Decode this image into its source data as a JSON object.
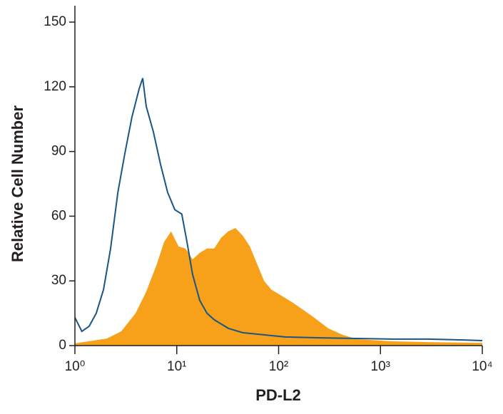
{
  "chart_data": {
    "type": "histogram-overlay",
    "x_label": "PD-L2",
    "y_label": "Relative Cell Number",
    "xlog": true,
    "xlim": [
      1,
      10000
    ],
    "xticks": [
      {
        "value": 1,
        "label": "10⁰"
      },
      {
        "value": 10,
        "label": "10¹"
      },
      {
        "value": 100,
        "label": "10²"
      },
      {
        "value": 1000,
        "label": "10³"
      },
      {
        "value": 10000,
        "label": "10⁴"
      }
    ],
    "ylim": [
      0,
      150
    ],
    "yticks": [
      0,
      30,
      60,
      90,
      120,
      150
    ],
    "series": [
      {
        "style": "filled",
        "color": "#f7a11a",
        "x": [
          1,
          2.07,
          2.85,
          3.94,
          5.01,
          6.4,
          7.5,
          8.8,
          10.4,
          12.2,
          14.3,
          16.8,
          19.8,
          23.3,
          27.3,
          32.1,
          37.7,
          44.4,
          52.2,
          61.3,
          72,
          84.6,
          108,
          137,
          175,
          223,
          307,
          424,
          585,
          1310,
          2940,
          10000
        ],
        "values": [
          1,
          3.3,
          6.6,
          15,
          25,
          38,
          48,
          53,
          46,
          45,
          40,
          43,
          45,
          45,
          50,
          53,
          54.5,
          51,
          46,
          38,
          30,
          26,
          23,
          20,
          16.5,
          13,
          8,
          5,
          3,
          2,
          1.6,
          1.3
        ]
      },
      {
        "style": "outline",
        "color": "#1a5585",
        "x": [
          1,
          1.17,
          1.38,
          1.62,
          1.91,
          2.24,
          2.64,
          3.09,
          3.63,
          4.27,
          4.63,
          5.01,
          5.9,
          6.93,
          8.14,
          9.57,
          11.2,
          12.6,
          14.3,
          16.8,
          19.8,
          23.3,
          32.1,
          44.4,
          72,
          116,
          261,
          585,
          1310,
          2940,
          6600,
          10000
        ],
        "values": [
          13,
          6.6,
          9,
          15,
          26,
          45,
          71,
          89,
          106,
          119,
          124,
          111,
          99,
          84,
          71,
          63,
          61,
          48,
          33,
          21,
          15,
          12,
          8,
          6,
          5,
          4,
          3.6,
          3.3,
          3,
          3,
          2.6,
          2.3
        ]
      }
    ]
  }
}
